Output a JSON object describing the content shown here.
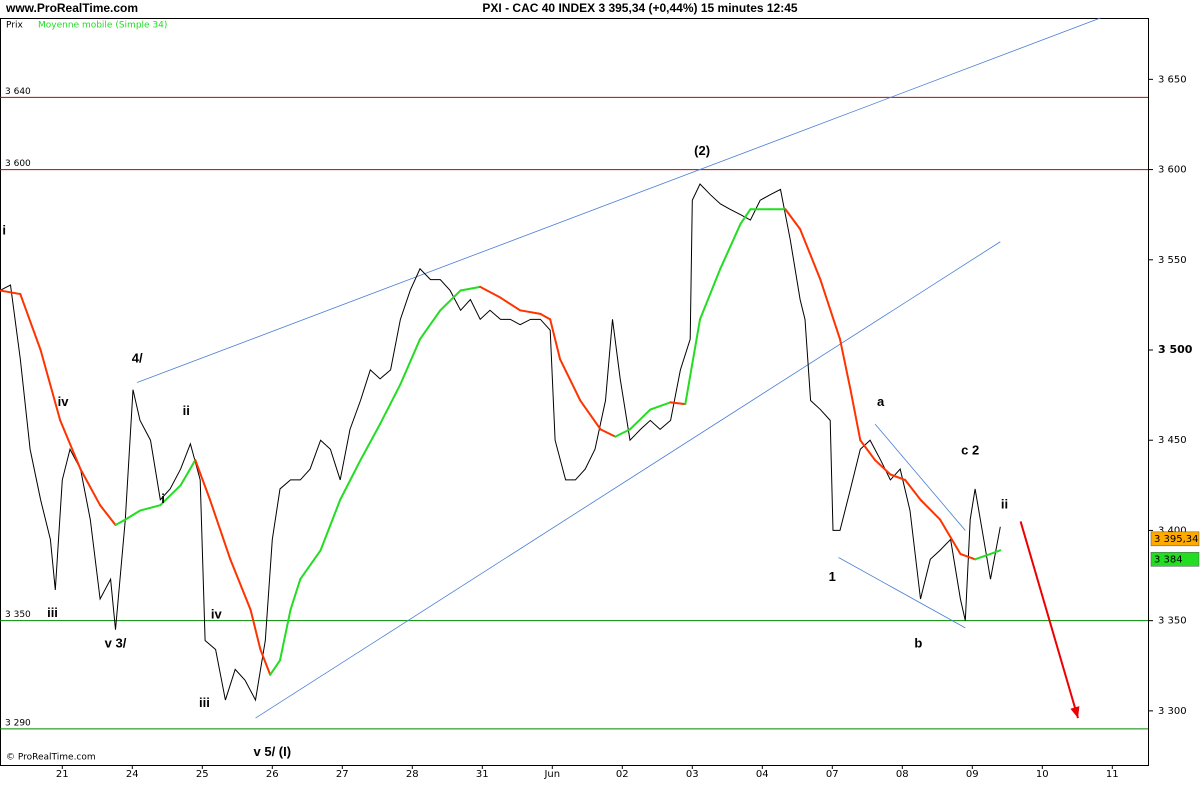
{
  "chart_data": {
    "type": "line",
    "site": "www.ProRealTime.com",
    "title": "PXI - CAC 40 INDEX   3 395,34 (+0,44%)   15 minutes  12:45",
    "copyright": "© ProRealTime.com",
    "xlim": [
      -0.89,
      15.51
    ],
    "ylim": [
      3270,
      3684
    ],
    "xticks": [
      {
        "value": 0,
        "label": "21"
      },
      {
        "value": 1,
        "label": "24"
      },
      {
        "value": 2,
        "label": "25"
      },
      {
        "value": 3,
        "label": "26"
      },
      {
        "value": 4,
        "label": "27"
      },
      {
        "value": 5,
        "label": "28"
      },
      {
        "value": 6,
        "label": "31"
      },
      {
        "value": 7,
        "label": "Jun"
      },
      {
        "value": 8,
        "label": "02"
      },
      {
        "value": 9,
        "label": "03"
      },
      {
        "value": 10,
        "label": "04"
      },
      {
        "value": 11,
        "label": "07"
      },
      {
        "value": 12,
        "label": "08"
      },
      {
        "value": 13,
        "label": "09"
      },
      {
        "value": 14,
        "label": "10"
      },
      {
        "value": 15,
        "label": "11"
      }
    ],
    "yticks": [
      {
        "value": 3300,
        "label": "3 300"
      },
      {
        "value": 3350,
        "label": "3 350"
      },
      {
        "value": 3400,
        "label": "3 400"
      },
      {
        "value": 3450,
        "label": "3 450"
      },
      {
        "value": 3500,
        "label": "3 500"
      },
      {
        "value": 3550,
        "label": "3 550"
      },
      {
        "value": 3600,
        "label": "3 600"
      },
      {
        "value": 3650,
        "label": "3 650"
      }
    ],
    "series": [
      {
        "name": "Prix",
        "color": "#000000",
        "x": [
          -0.89,
          -0.74,
          -0.6,
          -0.46,
          -0.31,
          -0.17,
          -0.1,
          0,
          0.11,
          0.26,
          0.4,
          0.54,
          0.69,
          0.76,
          0.9,
          1.01,
          1.11,
          1.26,
          1.4,
          1.54,
          1.69,
          1.83,
          1.97,
          2.04,
          2.19,
          2.33,
          2.47,
          2.61,
          2.76,
          2.9,
          3,
          3.11,
          3.26,
          3.4,
          3.54,
          3.69,
          3.83,
          3.97,
          4.11,
          4.26,
          4.4,
          4.54,
          4.69,
          4.83,
          4.97,
          5.11,
          5.26,
          5.4,
          5.54,
          5.69,
          5.83,
          5.97,
          6.11,
          6.26,
          6.4,
          6.54,
          6.69,
          6.83,
          6.97,
          7.04,
          7.19,
          7.33,
          7.47,
          7.61,
          7.76,
          7.86,
          7.97,
          8.11,
          8.26,
          8.4,
          8.54,
          8.69,
          8.83,
          8.97,
          9,
          9.11,
          9.26,
          9.4,
          9.54,
          9.69,
          9.83,
          9.97,
          10.11,
          10.26,
          10.4,
          10.54,
          10.61,
          10.69,
          10.83,
          10.97,
          11.01,
          11.11,
          11.26,
          11.4,
          11.54,
          11.69,
          11.83,
          11.97,
          12.11,
          12.26,
          12.4,
          12.54,
          12.69,
          12.83,
          12.9,
          12.97,
          13.04,
          13.19,
          13.26,
          13.4
        ],
        "values": [
          3533,
          3536,
          3495,
          3445,
          3417,
          3395,
          3367,
          3428,
          3445,
          3434,
          3406,
          3362,
          3373,
          3345,
          3406,
          3478,
          3461,
          3450,
          3417,
          3423,
          3434,
          3448,
          3428,
          3339,
          3334,
          3306,
          3323,
          3317,
          3306,
          3339,
          3395,
          3423,
          3428,
          3428,
          3434,
          3450,
          3445,
          3428,
          3456,
          3472,
          3489,
          3484,
          3489,
          3517,
          3533,
          3545,
          3539,
          3539,
          3533,
          3522,
          3528,
          3517,
          3522,
          3517,
          3517,
          3514,
          3517,
          3517,
          3511,
          3450,
          3428,
          3428,
          3434,
          3445,
          3472,
          3517,
          3484,
          3450,
          3456,
          3461,
          3456,
          3461,
          3489,
          3506,
          3583,
          3592,
          3586,
          3581,
          3578,
          3575,
          3572,
          3583,
          3586,
          3589,
          3561,
          3528,
          3517,
          3472,
          3467,
          3461,
          3400,
          3400,
          3423,
          3445,
          3450,
          3439,
          3428,
          3434,
          3411,
          3362,
          3384,
          3389,
          3395,
          3362,
          3350,
          3406,
          3423,
          3389,
          3373,
          3402
        ]
      },
      {
        "name": "Moyenne mobile (Simple 34)",
        "color": "#22dd22",
        "falling_color": "#ff3300",
        "x": [
          -0.89,
          -0.6,
          -0.31,
          -0.03,
          0.26,
          0.54,
          0.76,
          0.9,
          1.11,
          1.4,
          1.69,
          1.9,
          2.11,
          2.4,
          2.69,
          2.83,
          2.97,
          3.11,
          3.26,
          3.4,
          3.69,
          3.97,
          4.26,
          4.54,
          4.83,
          5.11,
          5.4,
          5.69,
          5.97,
          6.26,
          6.54,
          6.83,
          6.97,
          7.11,
          7.4,
          7.69,
          7.9,
          8.11,
          8.4,
          8.69,
          8.9,
          9.11,
          9.4,
          9.69,
          9.83,
          10.11,
          10.33,
          10.54,
          10.83,
          11.11,
          11.26,
          11.4,
          11.61,
          11.83,
          12.04,
          12.26,
          12.54,
          12.83,
          13.04,
          13.26,
          13.4
        ],
        "values": [
          3533,
          3531,
          3500,
          3461,
          3434,
          3414,
          3403,
          3406,
          3411,
          3414,
          3425,
          3439,
          3417,
          3384,
          3356,
          3334,
          3320,
          3328,
          3356,
          3373,
          3389,
          3417,
          3439,
          3459,
          3481,
          3506,
          3522,
          3533,
          3535,
          3529,
          3522,
          3520,
          3517,
          3495,
          3472,
          3456,
          3452,
          3456,
          3467,
          3471,
          3470,
          3517,
          3545,
          3570,
          3578,
          3578,
          3578,
          3567,
          3539,
          3506,
          3478,
          3450,
          3439,
          3431,
          3428,
          3417,
          3406,
          3387,
          3384,
          3387,
          3389
        ]
      }
    ],
    "hlines": [
      {
        "value": 3640,
        "label": "3 640",
        "color": "#cc0000"
      },
      {
        "value": 3600,
        "label": "3 600",
        "color": "#cc0000"
      },
      {
        "value": 3350,
        "label": "3 350",
        "color": "#008800"
      },
      {
        "value": 3290,
        "label": "3 290",
        "color": "#008800"
      }
    ],
    "trendlines": [
      {
        "x": [
          1.07,
          14.83
        ],
        "y": [
          3482,
          3684
        ],
        "color": "#4a7fd8"
      },
      {
        "x": [
          2.76,
          13.4
        ],
        "y": [
          3296,
          3560
        ],
        "color": "#4a7fd8"
      },
      {
        "x": [
          11.09,
          12.9
        ],
        "y": [
          3385,
          3346
        ],
        "color": "#4a7fd8"
      },
      {
        "x": [
          11.61,
          12.9
        ],
        "y": [
          3459,
          3400
        ],
        "color": "#4a7fd8"
      }
    ],
    "arrow": {
      "x": [
        13.69,
        14.51
      ],
      "y": [
        3405,
        3296
      ],
      "color": "#ee0000"
    },
    "annotations": [
      {
        "text": "i",
        "x": -0.83,
        "y": 3566
      },
      {
        "text": "iv",
        "x": 0.01,
        "y": 3471
      },
      {
        "text": "4/",
        "x": 1.07,
        "y": 3495
      },
      {
        "text": "ii",
        "x": 1.77,
        "y": 3466
      },
      {
        "text": "i",
        "x": 1.44,
        "y": 3417
      },
      {
        "text": "iii",
        "x": -0.14,
        "y": 3354
      },
      {
        "text": "v 3/",
        "x": 0.76,
        "y": 3337
      },
      {
        "text": "iv",
        "x": 2.2,
        "y": 3353
      },
      {
        "text": "iii",
        "x": 2.03,
        "y": 3304
      },
      {
        "text": "v 5/ (I)",
        "x": 3,
        "y": 3277
      },
      {
        "text": "(2)",
        "x": 9.14,
        "y": 3610
      },
      {
        "text": "a",
        "x": 11.69,
        "y": 3471
      },
      {
        "text": "c 2",
        "x": 12.97,
        "y": 3444
      },
      {
        "text": "ii",
        "x": 13.46,
        "y": 3414
      },
      {
        "text": "1",
        "x": 11,
        "y": 3374
      },
      {
        "text": "b",
        "x": 12.23,
        "y": 3337
      }
    ],
    "tags": [
      {
        "value": 3395.34,
        "label": "3 395,34",
        "color": "#ffaa00"
      },
      {
        "value": 3384,
        "label": "3 384",
        "color": "#22dd22"
      }
    ]
  }
}
